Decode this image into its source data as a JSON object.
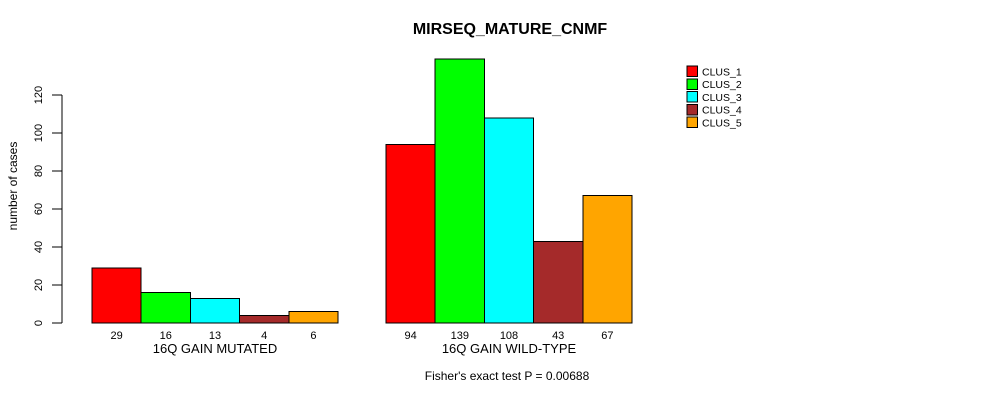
{
  "chart_data": {
    "type": "bar",
    "title": "MIRSEQ_MATURE_CNMF",
    "ylabel": "number of cases",
    "xlabel": "",
    "ylim": [
      0,
      139
    ],
    "yticks": [
      0,
      20,
      40,
      60,
      80,
      100,
      120
    ],
    "grid": false,
    "legend_position": "top-right-outside",
    "categories": [
      "16Q GAIN MUTATED",
      "16Q GAIN WILD-TYPE"
    ],
    "series": [
      {
        "name": "CLUS_1",
        "color": "#FF0000",
        "values": [
          29,
          94
        ]
      },
      {
        "name": "CLUS_2",
        "color": "#00FF00",
        "values": [
          16,
          139
        ]
      },
      {
        "name": "CLUS_3",
        "color": "#00FFFF",
        "values": [
          13,
          108
        ]
      },
      {
        "name": "CLUS_4",
        "color": "#A52A2A",
        "values": [
          4,
          43
        ]
      },
      {
        "name": "CLUS_5",
        "color": "#FFA500",
        "values": [
          6,
          67
        ]
      }
    ],
    "bar_value_labels": true,
    "caption": "Fisher's exact test P = 0.00688",
    "axis_color": "#000000",
    "bar_border_color": "#000000",
    "background_color": "#FFFFFF"
  }
}
